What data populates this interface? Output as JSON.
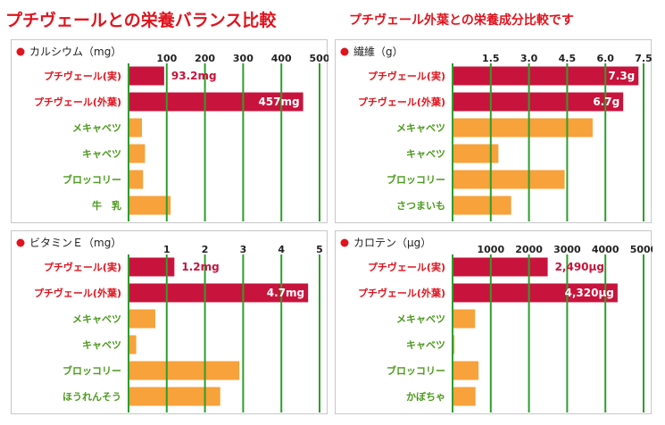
{
  "header": {
    "title": "プチヴェールとの栄養バランス比較",
    "subtitle": "プチヴェール外葉との栄養成分比較です"
  },
  "colors": {
    "title": "#e0141e",
    "highlight_bar": "#c8143c",
    "compare_bar": "#f7a23a",
    "grid": "#2e9e2e",
    "highlight_label": "#e0141e",
    "compare_label": "#4c9a1e",
    "bullet": "#e0141e"
  },
  "chart_data": [
    {
      "type": "bar",
      "orientation": "horizontal",
      "title": "カルシウム（mg）",
      "unit": "mg",
      "xlim": [
        0,
        500
      ],
      "ticks": [
        100,
        200,
        300,
        400,
        500
      ],
      "tick_labels": [
        "100",
        "200",
        "300",
        "400",
        "500"
      ],
      "categories": [
        "プチヴェール(実)",
        "プチヴェール(外葉)",
        "メキャベツ",
        "キャベツ",
        "ブロッコリー",
        "牛　乳"
      ],
      "values": [
        93.2,
        457,
        35,
        43,
        38,
        110
      ],
      "highlight": [
        true,
        true,
        false,
        false,
        false,
        false
      ],
      "data_labels": [
        "93.2mg",
        "457mg",
        "",
        "",
        "",
        ""
      ],
      "label_inside": [
        false,
        true,
        false,
        false,
        false,
        false
      ]
    },
    {
      "type": "bar",
      "orientation": "horizontal",
      "title": "繊維（g）",
      "unit": "g",
      "xlim": [
        0,
        7.5
      ],
      "ticks": [
        1.5,
        3.0,
        4.5,
        6.0,
        7.5
      ],
      "tick_labels": [
        "1.5",
        "3.0",
        "4.5",
        "6.0",
        "7.5"
      ],
      "categories": [
        "プチヴェール(実)",
        "プチヴェール(外葉)",
        "メキャベツ",
        "キャベツ",
        "ブロッコリー",
        "さつまいも"
      ],
      "values": [
        7.3,
        6.7,
        5.5,
        1.8,
        4.4,
        2.3
      ],
      "highlight": [
        true,
        true,
        false,
        false,
        false,
        false
      ],
      "data_labels": [
        "7.3g",
        "6.7g",
        "",
        "",
        "",
        ""
      ],
      "label_inside": [
        true,
        true,
        false,
        false,
        false,
        false
      ]
    },
    {
      "type": "bar",
      "orientation": "horizontal",
      "title": "ビタミンＥ（mg）",
      "unit": "mg",
      "xlim": [
        0,
        5
      ],
      "ticks": [
        1,
        2,
        3,
        4,
        5
      ],
      "tick_labels": [
        "1",
        "2",
        "3",
        "4",
        "5"
      ],
      "categories": [
        "プチヴェール(実)",
        "プチヴェール(外葉)",
        "メキャベツ",
        "キャベツ",
        "ブロッコリー",
        "ほうれんそう"
      ],
      "values": [
        1.2,
        4.7,
        0.7,
        0.2,
        2.9,
        2.4
      ],
      "highlight": [
        true,
        true,
        false,
        false,
        false,
        false
      ],
      "data_labels": [
        "1.2mg",
        "4.7mg",
        "",
        "",
        "",
        ""
      ],
      "label_inside": [
        false,
        true,
        false,
        false,
        false,
        false
      ]
    },
    {
      "type": "bar",
      "orientation": "horizontal",
      "title": "カロテン（μg）",
      "unit": "μg",
      "xlim": [
        0,
        5000
      ],
      "ticks": [
        1000,
        2000,
        3000,
        4000,
        5000
      ],
      "tick_labels": [
        "1000",
        "2000",
        "3000",
        "4000",
        "5000"
      ],
      "categories": [
        "プチヴェール(実)",
        "プチヴェール(外葉)",
        "メキャベツ",
        "キャベツ",
        "ブロッコリー",
        "かぼちゃ"
      ],
      "values": [
        2490,
        4320,
        590,
        50,
        680,
        600
      ],
      "highlight": [
        true,
        true,
        false,
        false,
        false,
        false
      ],
      "data_labels": [
        "2,490μg",
        "4,320μg",
        "",
        "",
        "",
        ""
      ],
      "label_inside": [
        false,
        true,
        false,
        false,
        false,
        false
      ]
    }
  ]
}
